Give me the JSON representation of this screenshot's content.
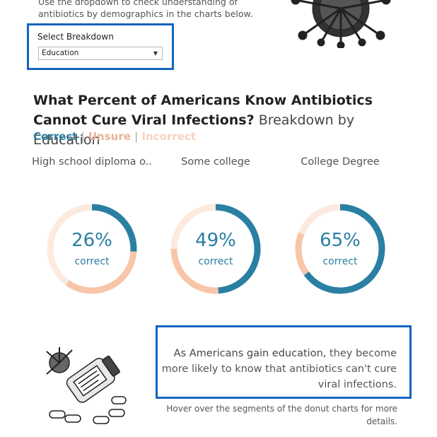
{
  "intro": {
    "text": "Use the dropdown to check understanding of antibiotics by demographics in the charts below."
  },
  "breakdown": {
    "label": "Select Breakdown",
    "selected": "Education"
  },
  "title": {
    "bold": "What Percent of Americans Know Antibiotics Cannot Cure Viral Infections?",
    "light": "Breakdown by Education"
  },
  "legend": {
    "correct": "Correct",
    "sep": "|",
    "unsure": "Unsure",
    "incorrect": "Incorrect"
  },
  "colors": {
    "correct": "#2a7fa3",
    "unsure": "#f7c6a8",
    "incorrect": "#fdeadf",
    "border_highlight": "#1565c0"
  },
  "chart_data": {
    "type": "donut",
    "categories": [
      "High school diploma o..",
      "Some college",
      "College Degree"
    ],
    "series": [
      {
        "name": "Correct",
        "values": [
          26,
          49,
          65
        ]
      },
      {
        "name": "Unsure",
        "values": [
          34,
          26,
          16
        ]
      },
      {
        "name": "Incorrect",
        "values": [
          40,
          25,
          19
        ]
      }
    ],
    "center_labels": [
      "26%",
      "49%",
      "65%"
    ],
    "center_sublabel": "correct"
  },
  "callout": {
    "bold": "As Americans gain education,",
    "text": " they become more likely to know that antibiotics can't cure viral infections."
  },
  "hover_note": "Hover over the segments of the donut charts for more details.",
  "icons": {
    "virus": "virus-illustration",
    "pills": "pill-bottle-illustration",
    "dropdown": "chevron-down-icon"
  }
}
